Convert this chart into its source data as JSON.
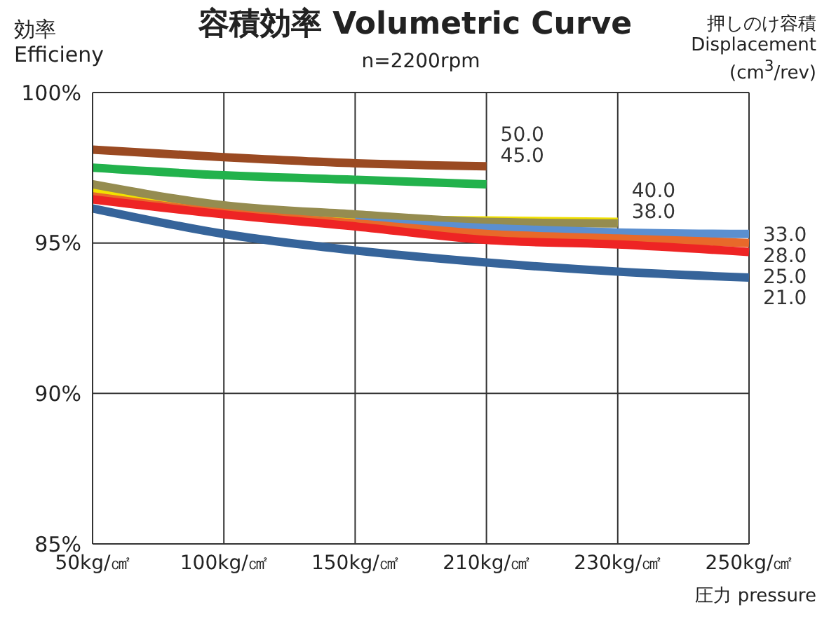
{
  "chart_data": {
    "type": "line",
    "title": "容積効率  Volumetric Curve",
    "subtitle": "n=2200rpm",
    "ylabel": "効率\nEfficieny",
    "legend_title": "押しのけ容積\nDisplacement\n(cm$^{3}$/rev)",
    "xlabel": "圧力 pressure",
    "categories": [
      "50kg/㎠",
      "100kg/㎠",
      "150kg/㎠",
      "210kg/㎠",
      "230kg/㎠",
      "250kg/㎠"
    ],
    "ylim": [
      85,
      100
    ],
    "yticks": [
      {
        "value": 85,
        "label": "85%"
      },
      {
        "value": 90,
        "label": "90%"
      },
      {
        "value": 95,
        "label": "95%"
      },
      {
        "value": 100,
        "label": "100%"
      }
    ],
    "grid": true,
    "legend": false,
    "marker": "none",
    "line_style": "solid",
    "series": [
      {
        "name": "50.0",
        "color": "#9a4a22",
        "values": [
          98.1,
          97.85,
          97.65,
          97.55,
          null,
          null
        ]
      },
      {
        "name": "45.0",
        "color": "#22b24c",
        "values": [
          97.5,
          97.25,
          97.1,
          96.95,
          null,
          null
        ]
      },
      {
        "name": "40.0",
        "color": "#f2e200",
        "values": [
          96.7,
          96.05,
          95.8,
          95.75,
          95.7,
          null
        ]
      },
      {
        "name": "38.0",
        "color": "#958c50",
        "values": [
          96.95,
          96.25,
          95.95,
          95.7,
          95.65,
          null
        ]
      },
      {
        "name": "33.0",
        "color": "#5b8fd0",
        "values": [
          null,
          null,
          95.7,
          95.5,
          95.35,
          95.3
        ]
      },
      {
        "name": "28.0",
        "color": "#e8692a",
        "values": [
          96.55,
          96.0,
          95.65,
          95.3,
          95.15,
          95.0
        ]
      },
      {
        "name": "25.0",
        "color": "#ee2424",
        "values": [
          96.45,
          95.95,
          95.55,
          95.1,
          94.95,
          94.7
        ]
      },
      {
        "name": "21.0",
        "color": "#36649a",
        "values": [
          96.15,
          95.3,
          94.75,
          94.35,
          94.05,
          93.85
        ]
      }
    ]
  }
}
